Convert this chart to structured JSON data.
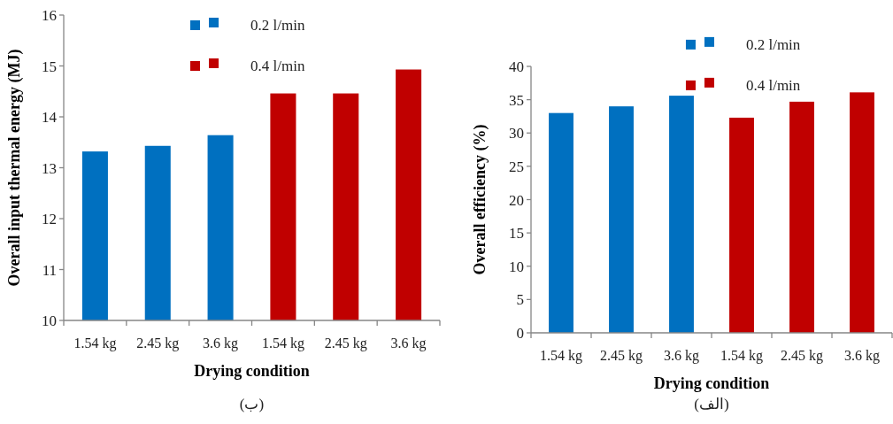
{
  "chart_data": [
    {
      "type": "bar",
      "xlabel": "Drying condition",
      "ylabel": "Overall input thermal energy (MJ)",
      "categories": [
        "1.54 kg",
        "2.45 kg",
        "3.6 kg",
        "1.54 kg",
        "2.45 kg",
        "3.6 kg"
      ],
      "series": [
        {
          "name": "0.2 l/min",
          "color": "#0070c0",
          "values": [
            13.32,
            13.43,
            13.64,
            null,
            null,
            null
          ]
        },
        {
          "name": "0.4 l/min",
          "color": "#c00000",
          "values": [
            null,
            null,
            null,
            14.46,
            14.46,
            14.93
          ]
        }
      ],
      "ylim": [
        10,
        16
      ],
      "yticks": [
        10,
        11,
        12,
        13,
        14,
        15,
        16
      ],
      "grid": false,
      "legend": "top",
      "annotations": [
        "(ب)"
      ]
    },
    {
      "type": "bar",
      "xlabel": "Drying condition",
      "ylabel": "Overall efficiency (%)",
      "categories": [
        "1.54 kg",
        "2.45 kg",
        "3.6 kg",
        "1.54 kg",
        "2.45 kg",
        "3.6 kg"
      ],
      "series": [
        {
          "name": "0.2 l/min",
          "color": "#0070c0",
          "values": [
            33.0,
            34.0,
            35.6,
            null,
            null,
            null
          ]
        },
        {
          "name": "0.4 l/min",
          "color": "#c00000",
          "values": [
            null,
            null,
            null,
            32.3,
            34.7,
            36.1
          ]
        }
      ],
      "ylim": [
        0,
        40
      ],
      "yticks": [
        0,
        5,
        10,
        15,
        20,
        25,
        30,
        35,
        40
      ],
      "grid": false,
      "legend": "top right",
      "annotations": [
        "(الف)"
      ]
    }
  ]
}
